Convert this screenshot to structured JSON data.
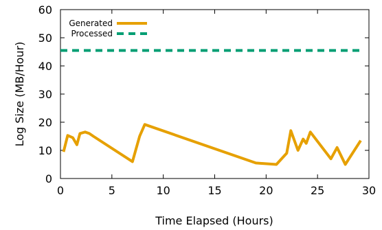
{
  "chart_data": {
    "type": "line",
    "xlabel": "Time Elapsed (Hours)",
    "ylabel": "Log Size (MB/Hour)",
    "xlim": [
      0,
      30
    ],
    "ylim": [
      0,
      60
    ],
    "x_ticks": [
      "0",
      "5",
      "10",
      "15",
      "20",
      "25",
      "30"
    ],
    "y_ticks": [
      "0",
      "10",
      "20",
      "30",
      "40",
      "50",
      "60"
    ],
    "grid": false,
    "legend_position": "top-left",
    "series": [
      {
        "name": "Generated",
        "color": "#E6A000",
        "style": "solid",
        "x": [
          0.3,
          0.7,
          1.2,
          1.6,
          1.9,
          2.4,
          2.8,
          3.2,
          7,
          7.7,
          8.2,
          19,
          21,
          22,
          22.4,
          23.1,
          23.6,
          23.9,
          24.3,
          26.3,
          26.9,
          27.7,
          29.2
        ],
        "y": [
          9.5,
          15.3,
          14.5,
          12,
          16,
          16.5,
          16,
          15,
          6,
          15,
          19.2,
          5.5,
          5,
          9,
          17,
          10,
          14,
          12.5,
          16.5,
          7,
          11,
          5,
          13.5
        ]
      },
      {
        "name": "Processed",
        "color": "#009E73",
        "style": "dashed",
        "x": [
          0,
          29.2
        ],
        "y": [
          45.5,
          45.5
        ]
      }
    ]
  }
}
